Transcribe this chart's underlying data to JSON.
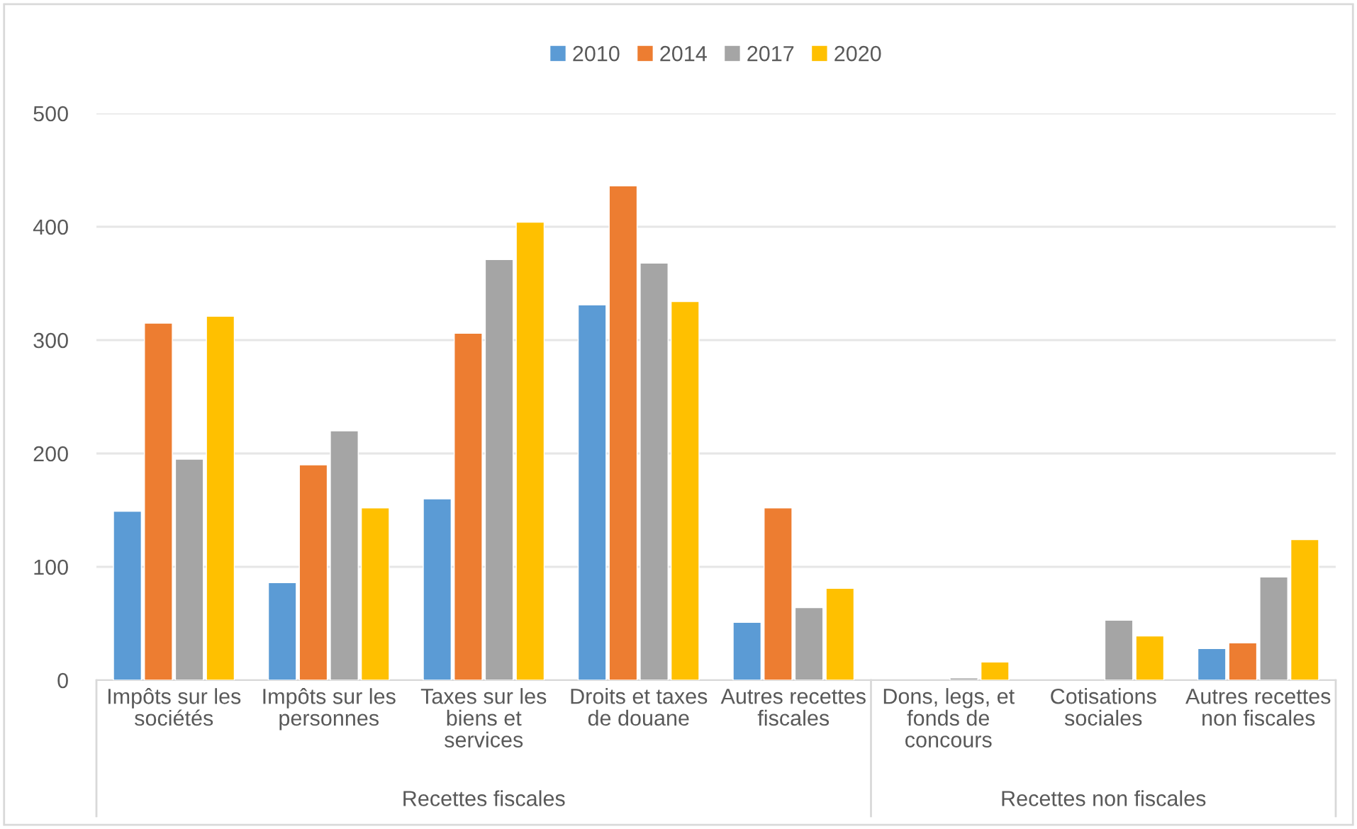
{
  "chart_data": {
    "type": "bar",
    "categories": [
      "Impôts sur les\nsociétés",
      "Impôts sur les\npersonnes",
      "Taxes sur les\nbiens et\nservices",
      "Droits et taxes\nde douane",
      "Autres recettes\nfiscales",
      "Dons, legs, et\nfonds de\nconcours",
      "Cotisations\nsociales",
      "Autres recettes\nnon fiscales"
    ],
    "series": [
      {
        "name": "2010",
        "color": "#5b9bd5",
        "values": [
          149,
          86,
          160,
          331,
          51,
          null,
          null,
          28
        ]
      },
      {
        "name": "2014",
        "color": "#ed7d31",
        "values": [
          315,
          190,
          306,
          436,
          152,
          null,
          null,
          33
        ]
      },
      {
        "name": "2017",
        "color": "#a5a5a5",
        "values": [
          195,
          220,
          371,
          368,
          64,
          2,
          53,
          91
        ]
      },
      {
        "name": "2020",
        "color": "#ffc000",
        "values": [
          321,
          152,
          404,
          334,
          81,
          16,
          39,
          124
        ]
      }
    ],
    "annotations": [
      "Recettes fiscales",
      "Recettes non fiscales"
    ],
    "ylim": [
      0,
      500
    ],
    "yticks": [
      0,
      100,
      200,
      300,
      400,
      500
    ],
    "grid": "y",
    "legend": "top"
  }
}
